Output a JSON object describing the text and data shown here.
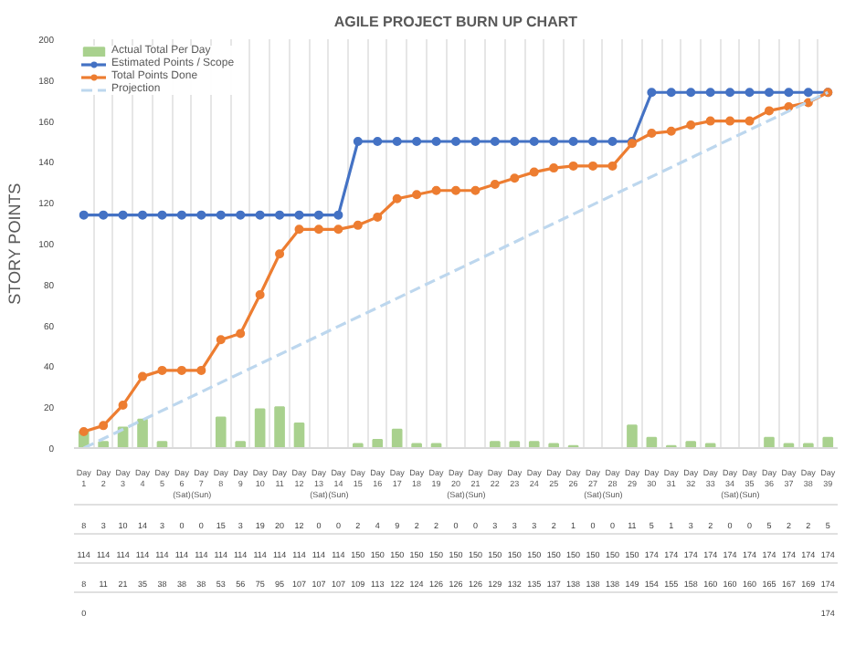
{
  "chart_data": {
    "type": "line",
    "title": "AGILE PROJECT BURN UP CHART",
    "ylabel": "STORY POINTS",
    "categories": [
      "Day 1",
      "Day 2",
      "Day 3",
      "Day 4",
      "Day 5",
      "Day 6 (Sat)",
      "Day 7 (Sun)",
      "Day 8",
      "Day 9",
      "Day 10",
      "Day 11",
      "Day 12",
      "Day 13 (Sat)",
      "Day 14 (Sun)",
      "Day 15",
      "Day 16",
      "Day 17",
      "Day 18",
      "Day 19",
      "Day 20 (Sat)",
      "Day 21 (Sun)",
      "Day 22",
      "Day 23",
      "Day 24",
      "Day 25",
      "Day 26",
      "Day 27 (Sat)",
      "Day 28 (Sun)",
      "Day 29",
      "Day 30",
      "Day 31",
      "Day 32",
      "Day 33",
      "Day 34 (Sat)",
      "Day 35 (Sun)",
      "Day 36",
      "Day 37",
      "Day 38",
      "Day 39"
    ],
    "series": [
      {
        "name": "Actual Total Per Day",
        "type": "bar",
        "color": "#a9d18e",
        "values": [
          8,
          3,
          10,
          14,
          3,
          0,
          0,
          15,
          3,
          19,
          20,
          12,
          0,
          0,
          2,
          4,
          9,
          2,
          2,
          0,
          0,
          3,
          3,
          3,
          2,
          1,
          0,
          0,
          11,
          5,
          1,
          3,
          2,
          0,
          0,
          5,
          2,
          2,
          5
        ]
      },
      {
        "name": "Estimated Points / Scope",
        "color": "#4472c4",
        "marker": "circle",
        "values": [
          114,
          114,
          114,
          114,
          114,
          114,
          114,
          114,
          114,
          114,
          114,
          114,
          114,
          114,
          150,
          150,
          150,
          150,
          150,
          150,
          150,
          150,
          150,
          150,
          150,
          150,
          150,
          150,
          150,
          174,
          174,
          174,
          174,
          174,
          174,
          174,
          174,
          174,
          174
        ]
      },
      {
        "name": "Total Points Done",
        "color": "#ed7d31",
        "marker": "circle",
        "values": [
          8,
          11,
          21,
          35,
          38,
          38,
          38,
          53,
          56,
          75,
          95,
          107,
          107,
          107,
          109,
          113,
          122,
          124,
          126,
          126,
          126,
          129,
          132,
          135,
          137,
          138,
          138,
          138,
          149,
          154,
          155,
          158,
          160,
          160,
          160,
          165,
          167,
          169,
          174
        ]
      },
      {
        "name": "Projection",
        "color": "#bdd7ee",
        "line_style": "dashed",
        "marker": "none",
        "values": [
          0,
          null,
          null,
          null,
          null,
          null,
          null,
          null,
          null,
          null,
          null,
          null,
          null,
          null,
          null,
          null,
          null,
          null,
          null,
          null,
          null,
          null,
          null,
          null,
          null,
          null,
          null,
          null,
          null,
          null,
          null,
          null,
          null,
          null,
          null,
          null,
          null,
          null,
          174
        ]
      }
    ],
    "ylim": [
      0,
      200
    ],
    "yticks": [
      0,
      20,
      40,
      60,
      80,
      100,
      120,
      140,
      160,
      180,
      200
    ],
    "grid": "x",
    "legend": "top left",
    "data_labels": true
  }
}
